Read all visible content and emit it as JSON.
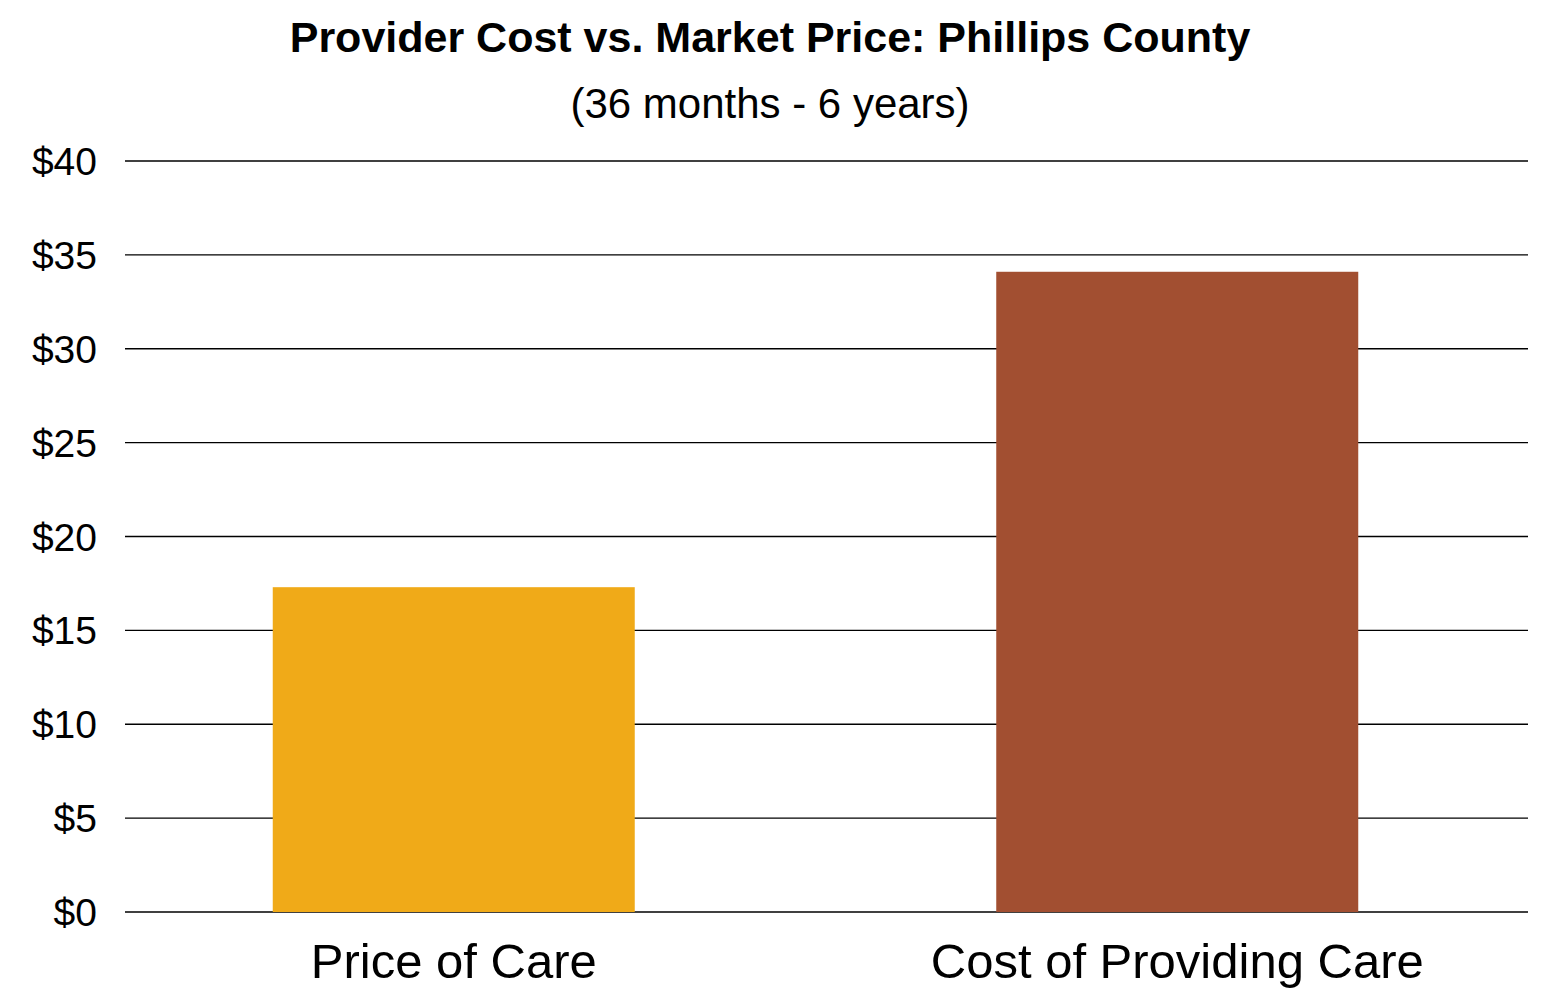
{
  "chart_data": {
    "type": "bar",
    "title": "Provider Cost vs. Market Price: Phillips County",
    "subtitle": "(36 months - 6 years)",
    "categories": [
      "Price of Care",
      "Cost of Providing Care"
    ],
    "values": [
      17.3,
      34.1
    ],
    "colors": [
      "#f0aa18",
      "#a24f31"
    ],
    "ylim": [
      0,
      40
    ],
    "yticks": [
      {
        "value": 0,
        "label": "$0"
      },
      {
        "value": 5,
        "label": "$5"
      },
      {
        "value": 10,
        "label": "$10"
      },
      {
        "value": 15,
        "label": "$15"
      },
      {
        "value": 20,
        "label": "$20"
      },
      {
        "value": 25,
        "label": "$25"
      },
      {
        "value": 30,
        "label": "$30"
      },
      {
        "value": 35,
        "label": "$35"
      },
      {
        "value": 40,
        "label": "$40"
      }
    ],
    "grid": true
  }
}
